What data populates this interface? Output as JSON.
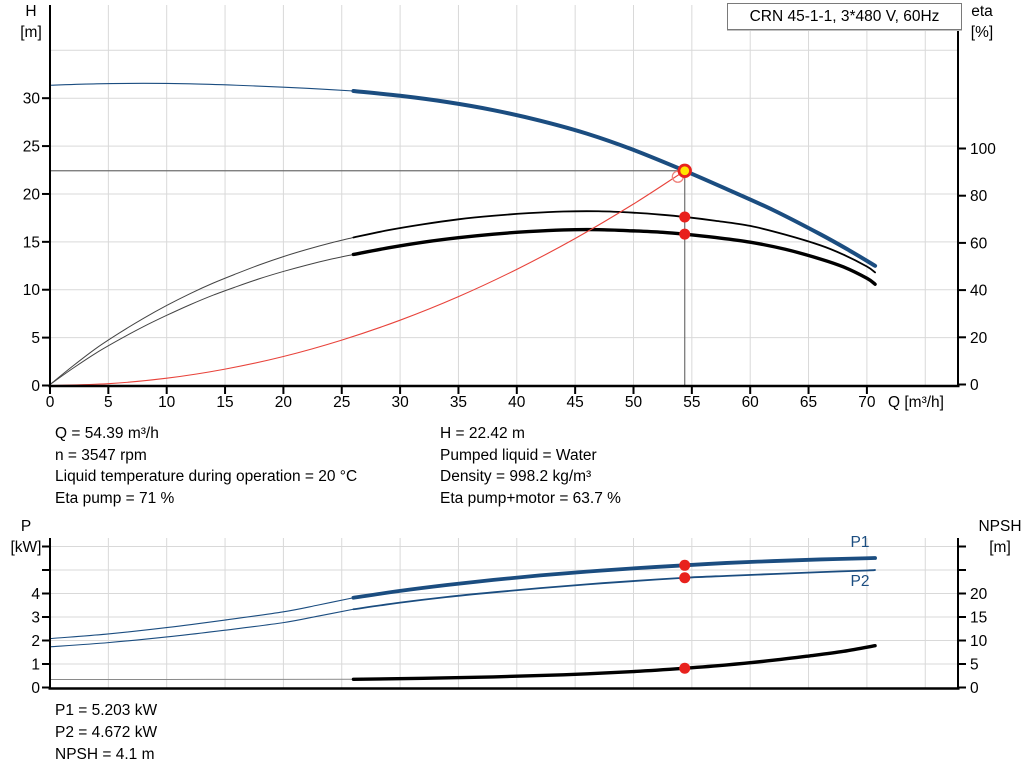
{
  "title_box": {
    "label": "CRN 45-1-1, 3*480 V, 60Hz"
  },
  "power_labels": [
    "P1",
    "P2"
  ],
  "info_top": {
    "left": [
      "Q = 54.39 m³/h",
      "n = 3547 rpm",
      "Liquid temperature during operation = 20 °C",
      "Eta pump = 71 %"
    ],
    "right": [
      "H = 22.42 m",
      "Pumped liquid = Water",
      "Density = 998.2 kg/m³",
      "Eta pump+motor = 63.7 %"
    ]
  },
  "info_bottom": [
    "P1 = 5.203 kW",
    "P2 = 4.672 kW",
    "NPSH = 4.1 m"
  ],
  "duty_point": {
    "Q_m3h": 54.39,
    "H_m": 22.42,
    "n_rpm": 3547,
    "eta_pump_pct": 71,
    "eta_pump_motor_pct": 63.7,
    "P1_kW": 5.203,
    "P2_kW": 4.672,
    "NPSH_m": 4.1
  },
  "chart_data": [
    {
      "name": "qh-eta-chart",
      "type": "line",
      "x_axis": {
        "label": "Q [m³/h]",
        "min": 0,
        "max": 77.8,
        "ticks": [
          0,
          5,
          10,
          15,
          20,
          25,
          30,
          35,
          40,
          45,
          50,
          55,
          60,
          65,
          70
        ]
      },
      "left_axis": {
        "label": "H",
        "unit": "[m]",
        "min": 0,
        "max": 30,
        "ticks": [
          0,
          5,
          10,
          15,
          20,
          25,
          30
        ],
        "tick_labels": [
          0,
          5,
          10,
          15,
          20,
          25,
          30
        ]
      },
      "right_axis": {
        "label": "eta",
        "unit": "[%]",
        "min": 0,
        "max": 100,
        "ticks": [
          0,
          20,
          40,
          60,
          80,
          100
        ],
        "tick_labels": [
          0,
          20,
          40,
          60,
          80,
          100
        ]
      },
      "grid": true,
      "crosshair": {
        "x": 54.39,
        "y": 22.42,
        "color": "#6f6f6f"
      },
      "series": [
        {
          "name": "head-curve-thin",
          "axis": "left",
          "color": "#1b4d80",
          "width": 1.1,
          "points": [
            [
              0,
              31.35
            ],
            [
              4,
              31.5
            ],
            [
              8,
              31.55
            ],
            [
              12,
              31.5
            ],
            [
              16,
              31.35
            ],
            [
              20,
              31.15
            ],
            [
              23,
              30.97
            ],
            [
              26,
              30.75
            ]
          ]
        },
        {
          "name": "head-curve",
          "axis": "left",
          "color": "#1b4d80",
          "width": 4,
          "points": [
            [
              26,
              30.75
            ],
            [
              30,
              30.25
            ],
            [
              34,
              29.6
            ],
            [
              38,
              28.75
            ],
            [
              42,
              27.65
            ],
            [
              46,
              26.3
            ],
            [
              50,
              24.6
            ],
            [
              54.39,
              22.42
            ],
            [
              58,
              20.5
            ],
            [
              62,
              18.3
            ],
            [
              66,
              15.8
            ],
            [
              68.5,
              14.1
            ],
            [
              70.7,
              12.5
            ]
          ]
        },
        {
          "name": "eta-pump-curve-thin",
          "axis": "right",
          "color": "#444444",
          "width": 1,
          "points": [
            [
              0,
              0
            ],
            [
              2,
              8
            ],
            [
              4,
              15.5
            ],
            [
              6,
              22
            ],
            [
              8,
              28
            ],
            [
              10,
              33.5
            ],
            [
              12,
              38.5
            ],
            [
              14,
              43
            ],
            [
              16,
              47
            ],
            [
              18,
              50.8
            ],
            [
              20,
              54.2
            ],
            [
              22,
              57.2
            ],
            [
              24,
              59.9
            ],
            [
              26,
              62.3
            ]
          ]
        },
        {
          "name": "eta-pump-curve",
          "axis": "right",
          "color": "#000000",
          "width": 1.8,
          "points": [
            [
              26,
              62.3
            ],
            [
              29,
              65.4
            ],
            [
              32,
              67.9
            ],
            [
              35,
              70
            ],
            [
              38,
              71.5
            ],
            [
              41,
              72.6
            ],
            [
              44,
              73.3
            ],
            [
              47,
              73.4
            ],
            [
              50,
              72.8
            ],
            [
              52.5,
              71.9
            ],
            [
              54.39,
              71
            ],
            [
              57,
              69.4
            ],
            [
              60,
              67.2
            ],
            [
              63,
              63.5
            ],
            [
              66,
              59
            ],
            [
              68,
              55
            ],
            [
              70,
              50
            ],
            [
              70.7,
              47.5
            ]
          ]
        },
        {
          "name": "eta-pump-motor-curve-thin",
          "axis": "right",
          "color": "#444444",
          "width": 1,
          "points": [
            [
              0,
              0
            ],
            [
              2,
              7
            ],
            [
              4,
              13.5
            ],
            [
              6,
              19.2
            ],
            [
              8,
              24.5
            ],
            [
              10,
              29.3
            ],
            [
              12,
              33.8
            ],
            [
              14,
              37.9
            ],
            [
              16,
              41.5
            ],
            [
              18,
              44.9
            ],
            [
              20,
              47.9
            ],
            [
              22,
              50.6
            ],
            [
              24,
              53
            ],
            [
              26,
              55.1
            ]
          ]
        },
        {
          "name": "eta-pump-motor-curve",
          "axis": "right",
          "color": "#000000",
          "width": 3.4,
          "points": [
            [
              26,
              55.1
            ],
            [
              29,
              57.9
            ],
            [
              32,
              60.3
            ],
            [
              35,
              62.2
            ],
            [
              38,
              63.7
            ],
            [
              41,
              64.8
            ],
            [
              44,
              65.5
            ],
            [
              47,
              65.6
            ],
            [
              50,
              65.1
            ],
            [
              52.5,
              64.5
            ],
            [
              54.39,
              63.7
            ],
            [
              57,
              62.3
            ],
            [
              60,
              60.3
            ],
            [
              63,
              57.3
            ],
            [
              66,
              53.2
            ],
            [
              68,
              49.8
            ],
            [
              70,
              45
            ],
            [
              70.7,
              42.5
            ]
          ]
        },
        {
          "name": "system-curve",
          "axis": "left",
          "color": "#e8433b",
          "width": 1.1,
          "points": [
            [
              0,
              0
            ],
            [
              5,
              0.19
            ],
            [
              10,
              0.76
            ],
            [
              15,
              1.71
            ],
            [
              20,
              3.03
            ],
            [
              25,
              4.74
            ],
            [
              30,
              6.82
            ],
            [
              35,
              9.28
            ],
            [
              40,
              12.13
            ],
            [
              45,
              15.35
            ],
            [
              50,
              18.95
            ],
            [
              54.39,
              22.42
            ]
          ]
        }
      ],
      "markers": [
        {
          "name": "system-curve-intersection",
          "type": "open-circle",
          "axis": "left",
          "x": 53.8,
          "y": 21.8,
          "r": 5.5,
          "color": "#ef837d"
        },
        {
          "name": "eta-pump-point",
          "type": "dot",
          "axis": "right",
          "x": 54.39,
          "y": 71,
          "r": 5.5,
          "color": "#e8211d"
        },
        {
          "name": "eta-pump-motor-point",
          "type": "dot",
          "axis": "right",
          "x": 54.39,
          "y": 63.7,
          "r": 5.5,
          "color": "#e8211d"
        },
        {
          "name": "duty-point-marker",
          "type": "duty",
          "axis": "left",
          "x": 54.39,
          "y": 22.42,
          "r": 5.8,
          "color": "#ffe400",
          "stroke": "#e8211d"
        }
      ]
    },
    {
      "name": "power-npsh-chart",
      "type": "line",
      "x_axis": {
        "label": "",
        "min": 0,
        "max": 77.8,
        "ticks": []
      },
      "left_axis": {
        "label": "P",
        "unit": "[kW]",
        "min": 0,
        "max": 6,
        "ticks": [
          0,
          1,
          2,
          3,
          4,
          5,
          6
        ],
        "tick_labels": [
          0,
          1,
          2,
          3,
          4
        ]
      },
      "right_axis": {
        "label": "NPSH",
        "unit": "[m]",
        "min": 0,
        "max": 30,
        "ticks": [
          0,
          5,
          10,
          15,
          20,
          25,
          30
        ],
        "tick_labels": [
          0,
          5,
          10,
          15,
          20
        ]
      },
      "grid": true,
      "series": [
        {
          "name": "p1-curve-thin",
          "axis": "left",
          "color": "#1b4d80",
          "width": 1.1,
          "points": [
            [
              0,
              2.08
            ],
            [
              5,
              2.28
            ],
            [
              10,
              2.55
            ],
            [
              15,
              2.87
            ],
            [
              20,
              3.22
            ],
            [
              23,
              3.51
            ],
            [
              26,
              3.82
            ]
          ]
        },
        {
          "name": "p1-curve",
          "axis": "left",
          "color": "#1b4d80",
          "width": 3.8,
          "points": [
            [
              26,
              3.82
            ],
            [
              30,
              4.11
            ],
            [
              34,
              4.36
            ],
            [
              38,
              4.58
            ],
            [
              42,
              4.77
            ],
            [
              46,
              4.93
            ],
            [
              50,
              5.07
            ],
            [
              54.39,
              5.2
            ],
            [
              58,
              5.3
            ],
            [
              62,
              5.38
            ],
            [
              66,
              5.45
            ],
            [
              70,
              5.5
            ],
            [
              70.7,
              5.51
            ]
          ]
        },
        {
          "name": "p2-curve-thin",
          "axis": "left",
          "color": "#1b4d80",
          "width": 1.1,
          "points": [
            [
              0,
              1.73
            ],
            [
              5,
              1.91
            ],
            [
              10,
              2.15
            ],
            [
              15,
              2.44
            ],
            [
              20,
              2.76
            ],
            [
              23,
              3.04
            ],
            [
              26,
              3.33
            ]
          ]
        },
        {
          "name": "p2-curve",
          "axis": "left",
          "color": "#1b4d80",
          "width": 1.8,
          "points": [
            [
              26,
              3.33
            ],
            [
              30,
              3.61
            ],
            [
              34,
              3.85
            ],
            [
              38,
              4.05
            ],
            [
              42,
              4.23
            ],
            [
              46,
              4.39
            ],
            [
              50,
              4.53
            ],
            [
              54.39,
              4.67
            ],
            [
              58,
              4.75
            ],
            [
              62,
              4.83
            ],
            [
              66,
              4.91
            ],
            [
              70,
              4.98
            ],
            [
              70.7,
              5.0
            ]
          ]
        },
        {
          "name": "npsh-curve-thin",
          "axis": "right",
          "color": "#8a8a8a",
          "width": 1,
          "points": [
            [
              0,
              1.7
            ],
            [
              10,
              1.71
            ],
            [
              20,
              1.73
            ],
            [
              26,
              1.75
            ]
          ]
        },
        {
          "name": "npsh-curve",
          "axis": "right",
          "color": "#000000",
          "width": 3.4,
          "points": [
            [
              26,
              1.75
            ],
            [
              32,
              1.95
            ],
            [
              38,
              2.25
            ],
            [
              44,
              2.7
            ],
            [
              50,
              3.4
            ],
            [
              54.39,
              4.1
            ],
            [
              58,
              4.8
            ],
            [
              62,
              5.8
            ],
            [
              65,
              6.7
            ],
            [
              68,
              7.7
            ],
            [
              70.7,
              8.9
            ]
          ]
        }
      ],
      "markers": [
        {
          "name": "p1-point",
          "type": "dot",
          "axis": "left",
          "x": 54.39,
          "y": 5.2,
          "r": 5.5,
          "color": "#e8211d"
        },
        {
          "name": "p2-point",
          "type": "dot",
          "axis": "left",
          "x": 54.39,
          "y": 4.67,
          "r": 5.5,
          "color": "#e8211d"
        },
        {
          "name": "npsh-point",
          "type": "dot",
          "axis": "right",
          "x": 54.39,
          "y": 4.1,
          "r": 5.5,
          "color": "#e8211d"
        }
      ]
    }
  ]
}
